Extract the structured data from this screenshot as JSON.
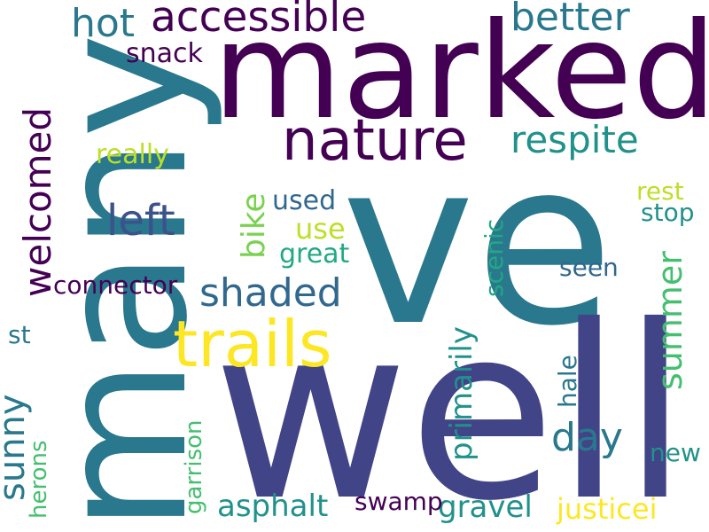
{
  "palette": {
    "dark_purple": "#440154",
    "indigo": "#414487",
    "slate_blue": "#3b528b",
    "steel_blue": "#31688e",
    "teal": "#2a788e",
    "teal_green": "#21918c",
    "sea_green": "#22a884",
    "green": "#44bf70",
    "lime": "#7ad151",
    "yellow_green": "#bddf26",
    "yellow": "#fde725"
  },
  "words": {
    "ve": "ve",
    "well": "well",
    "many": "many",
    "marked": "marked",
    "nature": "nature",
    "accessible": "accessible",
    "trails": "trails",
    "respite": "respite",
    "better": "better",
    "hot": "hot",
    "welcomed": "welcomed",
    "shaded": "shaded",
    "left": "left",
    "summer": "summer",
    "sunny": "sunny",
    "day": "day",
    "primarily": "primarily",
    "bike": "bike",
    "asphalt": "asphalt",
    "gravel": "gravel",
    "justicei": "justicei",
    "snack": "snack",
    "really": "really",
    "connector": "connector",
    "used": "used",
    "use": "use",
    "great": "great",
    "scenic": "scenic",
    "rest": "rest",
    "stop": "stop",
    "seen": "seen",
    "hale": "hale",
    "garrison": "garrison",
    "herons": "herons",
    "swamp": "swamp",
    "new": "new",
    "st": "st"
  }
}
